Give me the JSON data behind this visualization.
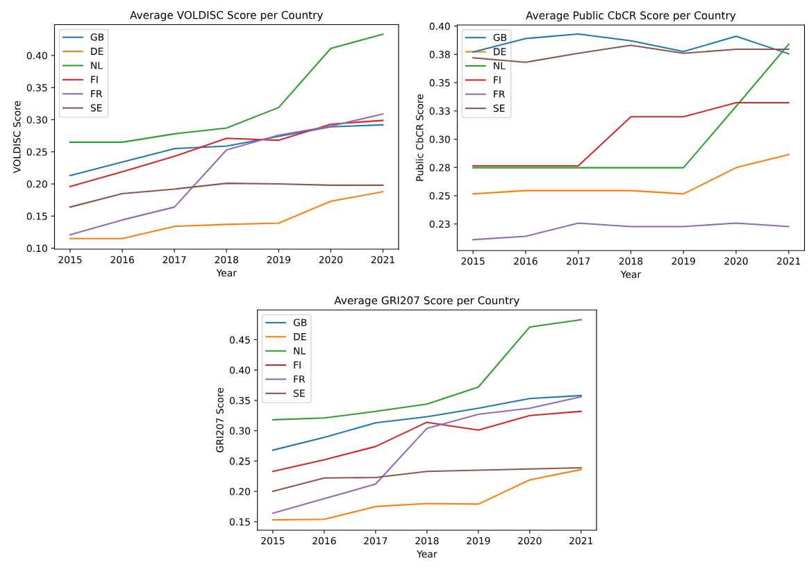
{
  "chart_data": [
    {
      "type": "line",
      "title": "Average VOLDISC Score per Country",
      "xlabel": "Year",
      "ylabel": "VOLDISC Score",
      "x": [
        2015,
        2016,
        2017,
        2018,
        2019,
        2020,
        2021
      ],
      "xlim": [
        2014.7,
        2021.3
      ],
      "xticks": [
        2015,
        2016,
        2017,
        2018,
        2019,
        2020,
        2021
      ],
      "ylim": [
        0.0985,
        0.448
      ],
      "yticks": [
        {
          "value": 0.1,
          "label": "0.10"
        },
        0.15,
        {
          "value": 0.2,
          "label": "0.20"
        },
        0.25,
        {
          "value": 0.3,
          "label": "0.30"
        },
        0.35,
        {
          "value": 0.4,
          "label": "0.40"
        }
      ],
      "legend": "top left",
      "grid": false,
      "series": [
        {
          "name": "GB",
          "color": "#1f77b4",
          "values": [
            0.213,
            0.234,
            0.255,
            0.259,
            0.274,
            0.289,
            0.292
          ]
        },
        {
          "name": "DE",
          "color": "#ff7f0e",
          "values": [
            0.115,
            0.115,
            0.134,
            0.137,
            0.139,
            0.173,
            0.188
          ]
        },
        {
          "name": "NL",
          "color": "#2ca02c",
          "values": [
            0.265,
            0.265,
            0.278,
            0.287,
            0.319,
            0.411,
            0.433
          ]
        },
        {
          "name": "FI",
          "color": "#d62728",
          "values": [
            0.196,
            0.219,
            0.243,
            0.271,
            0.268,
            0.293,
            0.299
          ]
        },
        {
          "name": "FR",
          "color": "#9467bd",
          "values": [
            0.121,
            0.144,
            0.164,
            0.253,
            0.276,
            0.29,
            0.309
          ]
        },
        {
          "name": "SE",
          "color": "#8c564b",
          "values": [
            0.164,
            0.185,
            0.192,
            0.201,
            0.2,
            0.198,
            0.198
          ]
        }
      ]
    },
    {
      "type": "line",
      "title": "Average Public CbCR Score per Country",
      "xlabel": "Year",
      "ylabel": "Public CbCR Score",
      "x": [
        2015,
        2016,
        2017,
        2018,
        2019,
        2020,
        2021
      ],
      "xlim": [
        2014.7,
        2021.3
      ],
      "xticks": [
        2015,
        2016,
        2017,
        2018,
        2019,
        2020,
        2021
      ],
      "ylim": [
        0.2015,
        0.401
      ],
      "yticks": [
        {
          "value": 0.225,
          "label": "0.23"
        },
        {
          "value": 0.25,
          "label": "0.25"
        },
        {
          "value": 0.275,
          "label": "0.28"
        },
        {
          "value": 0.3,
          "label": "0.30"
        },
        {
          "value": 0.325,
          "label": "0.33"
        },
        {
          "value": 0.35,
          "label": "0.35"
        },
        {
          "value": 0.375,
          "label": "0.38"
        },
        {
          "value": 0.4,
          "label": "0.40"
        }
      ],
      "legend": "top left",
      "grid": false,
      "series": [
        {
          "name": "GB",
          "color": "#1f77b4",
          "values": [
            0.377,
            0.389,
            0.393,
            0.387,
            0.3775,
            0.391,
            0.3755
          ]
        },
        {
          "name": "DE",
          "color": "#ff7f0e",
          "values": [
            0.2516,
            0.2545,
            0.2545,
            0.2545,
            0.2516,
            0.2748,
            0.2864
          ]
        },
        {
          "name": "NL",
          "color": "#2ca02c",
          "values": [
            0.2748,
            0.2748,
            0.2748,
            0.2748,
            0.2748,
            0.329,
            0.384
          ]
        },
        {
          "name": "FI",
          "color": "#d62728",
          "values": [
            0.2764,
            0.2764,
            0.2764,
            0.3198,
            0.3198,
            0.3323,
            0.3323
          ]
        },
        {
          "name": "FR",
          "color": "#9467bd",
          "values": [
            0.2111,
            0.2141,
            0.2257,
            0.2227,
            0.2227,
            0.2257,
            0.2227
          ]
        },
        {
          "name": "SE",
          "color": "#8c564b",
          "values": [
            0.372,
            0.368,
            0.376,
            0.383,
            0.376,
            0.3795,
            0.3795
          ]
        }
      ]
    },
    {
      "type": "line",
      "title": "Average GRI207 Score per Country",
      "xlabel": "Year",
      "ylabel": "GRI207 Score",
      "x": [
        2015,
        2016,
        2017,
        2018,
        2019,
        2020,
        2021
      ],
      "xlim": [
        2014.7,
        2021.3
      ],
      "xticks": [
        2015,
        2016,
        2017,
        2018,
        2019,
        2020,
        2021
      ],
      "ylim": [
        0.136,
        0.499
      ],
      "yticks": [
        0.15,
        {
          "value": 0.2,
          "label": "0.20"
        },
        0.25,
        {
          "value": 0.3,
          "label": "0.30"
        },
        0.35,
        {
          "value": 0.4,
          "label": "0.40"
        },
        0.45
      ],
      "legend": "top left",
      "grid": false,
      "series": [
        {
          "name": "GB",
          "color": "#1f77b4",
          "values": [
            0.268,
            0.289,
            0.313,
            0.323,
            0.337,
            0.353,
            0.358
          ]
        },
        {
          "name": "DE",
          "color": "#ff7f0e",
          "values": [
            0.153,
            0.154,
            0.175,
            0.18,
            0.179,
            0.219,
            0.236
          ]
        },
        {
          "name": "NL",
          "color": "#2ca02c",
          "values": [
            0.318,
            0.321,
            0.332,
            0.344,
            0.372,
            0.471,
            0.483
          ]
        },
        {
          "name": "FI",
          "color": "#d62728",
          "values": [
            0.233,
            0.252,
            0.274,
            0.314,
            0.301,
            0.325,
            0.332
          ]
        },
        {
          "name": "FR",
          "color": "#9467bd",
          "values": [
            0.164,
            0.188,
            0.212,
            0.304,
            0.327,
            0.337,
            0.356
          ]
        },
        {
          "name": "SE",
          "color": "#8c564b",
          "values": [
            0.2,
            0.222,
            0.223,
            0.233,
            0.235,
            0.237,
            0.239
          ]
        }
      ]
    }
  ]
}
